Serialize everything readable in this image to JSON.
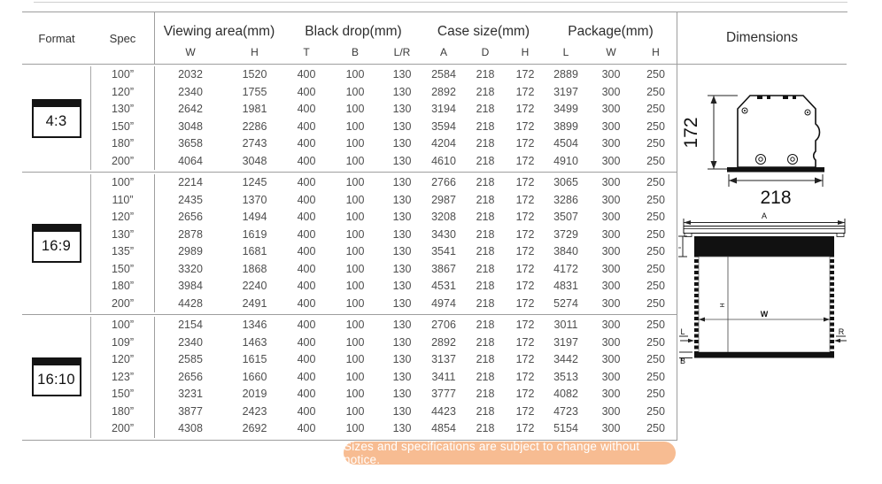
{
  "header": {
    "format_label": "Format",
    "spec_label": "Spec",
    "groups": [
      {
        "label": "Viewing area(mm)",
        "cols": [
          "W",
          "H"
        ]
      },
      {
        "label": "Black drop(mm)",
        "cols": [
          "T",
          "B",
          "L/R"
        ]
      },
      {
        "label": "Case size(mm)",
        "cols": [
          "A",
          "D",
          "H"
        ]
      },
      {
        "label": "Package(mm)",
        "cols": [
          "L",
          "W",
          "H"
        ]
      }
    ],
    "dimensions_label": "Dimensions"
  },
  "sections": [
    {
      "format": "4:3",
      "rows": [
        {
          "spec": "100”",
          "values": [
            "2032",
            "1520",
            "400",
            "100",
            "130",
            "2584",
            "218",
            "172",
            "2889",
            "300",
            "250"
          ]
        },
        {
          "spec": "120”",
          "values": [
            "2340",
            "1755",
            "400",
            "100",
            "130",
            "2892",
            "218",
            "172",
            "3197",
            "300",
            "250"
          ]
        },
        {
          "spec": "130”",
          "values": [
            "2642",
            "1981",
            "400",
            "100",
            "130",
            "3194",
            "218",
            "172",
            "3499",
            "300",
            "250"
          ]
        },
        {
          "spec": "150”",
          "values": [
            "3048",
            "2286",
            "400",
            "100",
            "130",
            "3594",
            "218",
            "172",
            "3899",
            "300",
            "250"
          ]
        },
        {
          "spec": "180”",
          "values": [
            "3658",
            "2743",
            "400",
            "100",
            "130",
            "4204",
            "218",
            "172",
            "4504",
            "300",
            "250"
          ]
        },
        {
          "spec": "200”",
          "values": [
            "4064",
            "3048",
            "400",
            "100",
            "130",
            "4610",
            "218",
            "172",
            "4910",
            "300",
            "250"
          ]
        }
      ]
    },
    {
      "format": "16:9",
      "rows": [
        {
          "spec": "100”",
          "values": [
            "2214",
            "1245",
            "400",
            "100",
            "130",
            "2766",
            "218",
            "172",
            "3065",
            "300",
            "250"
          ]
        },
        {
          "spec": "110”",
          "values": [
            "2435",
            "1370",
            "400",
            "100",
            "130",
            "2987",
            "218",
            "172",
            "3286",
            "300",
            "250"
          ]
        },
        {
          "spec": "120”",
          "values": [
            "2656",
            "1494",
            "400",
            "100",
            "130",
            "3208",
            "218",
            "172",
            "3507",
            "300",
            "250"
          ]
        },
        {
          "spec": "130”",
          "values": [
            "2878",
            "1619",
            "400",
            "100",
            "130",
            "3430",
            "218",
            "172",
            "3729",
            "300",
            "250"
          ]
        },
        {
          "spec": "135”",
          "values": [
            "2989",
            "1681",
            "400",
            "100",
            "130",
            "3541",
            "218",
            "172",
            "3840",
            "300",
            "250"
          ]
        },
        {
          "spec": "150”",
          "values": [
            "3320",
            "1868",
            "400",
            "100",
            "130",
            "3867",
            "218",
            "172",
            "4172",
            "300",
            "250"
          ]
        },
        {
          "spec": "180”",
          "values": [
            "3984",
            "2240",
            "400",
            "100",
            "130",
            "4531",
            "218",
            "172",
            "4831",
            "300",
            "250"
          ]
        },
        {
          "spec": "200”",
          "values": [
            "4428",
            "2491",
            "400",
            "100",
            "130",
            "4974",
            "218",
            "172",
            "5274",
            "300",
            "250"
          ]
        }
      ]
    },
    {
      "format": "16:10",
      "rows": [
        {
          "spec": "100”",
          "values": [
            "2154",
            "1346",
            "400",
            "100",
            "130",
            "2706",
            "218",
            "172",
            "3011",
            "300",
            "250"
          ]
        },
        {
          "spec": "109”",
          "values": [
            "2340",
            "1463",
            "400",
            "100",
            "130",
            "2892",
            "218",
            "172",
            "3197",
            "300",
            "250"
          ]
        },
        {
          "spec": "120”",
          "values": [
            "2585",
            "1615",
            "400",
            "100",
            "130",
            "3137",
            "218",
            "172",
            "3442",
            "300",
            "250"
          ]
        },
        {
          "spec": "123”",
          "values": [
            "2656",
            "1660",
            "400",
            "100",
            "130",
            "3411",
            "218",
            "172",
            "3513",
            "300",
            "250"
          ]
        },
        {
          "spec": "150”",
          "values": [
            "3231",
            "2019",
            "400",
            "100",
            "130",
            "3777",
            "218",
            "172",
            "4082",
            "300",
            "250"
          ]
        },
        {
          "spec": "180”",
          "values": [
            "3877",
            "2423",
            "400",
            "100",
            "130",
            "4423",
            "218",
            "172",
            "4723",
            "300",
            "250"
          ]
        },
        {
          "spec": "200”",
          "values": [
            "4308",
            "2692",
            "400",
            "100",
            "130",
            "4854",
            "218",
            "172",
            "5154",
            "300",
            "250"
          ]
        }
      ]
    }
  ],
  "diagrams": {
    "side": {
      "height": "172",
      "width": "218"
    },
    "front": {
      "a": "A",
      "t": "T",
      "h": "H",
      "w": "W",
      "l": "L",
      "r": "R",
      "b": "B"
    }
  },
  "footer": {
    "note": "Sizes and specifications are subject to change without notice.",
    "accent_color": "#f7bc92"
  }
}
